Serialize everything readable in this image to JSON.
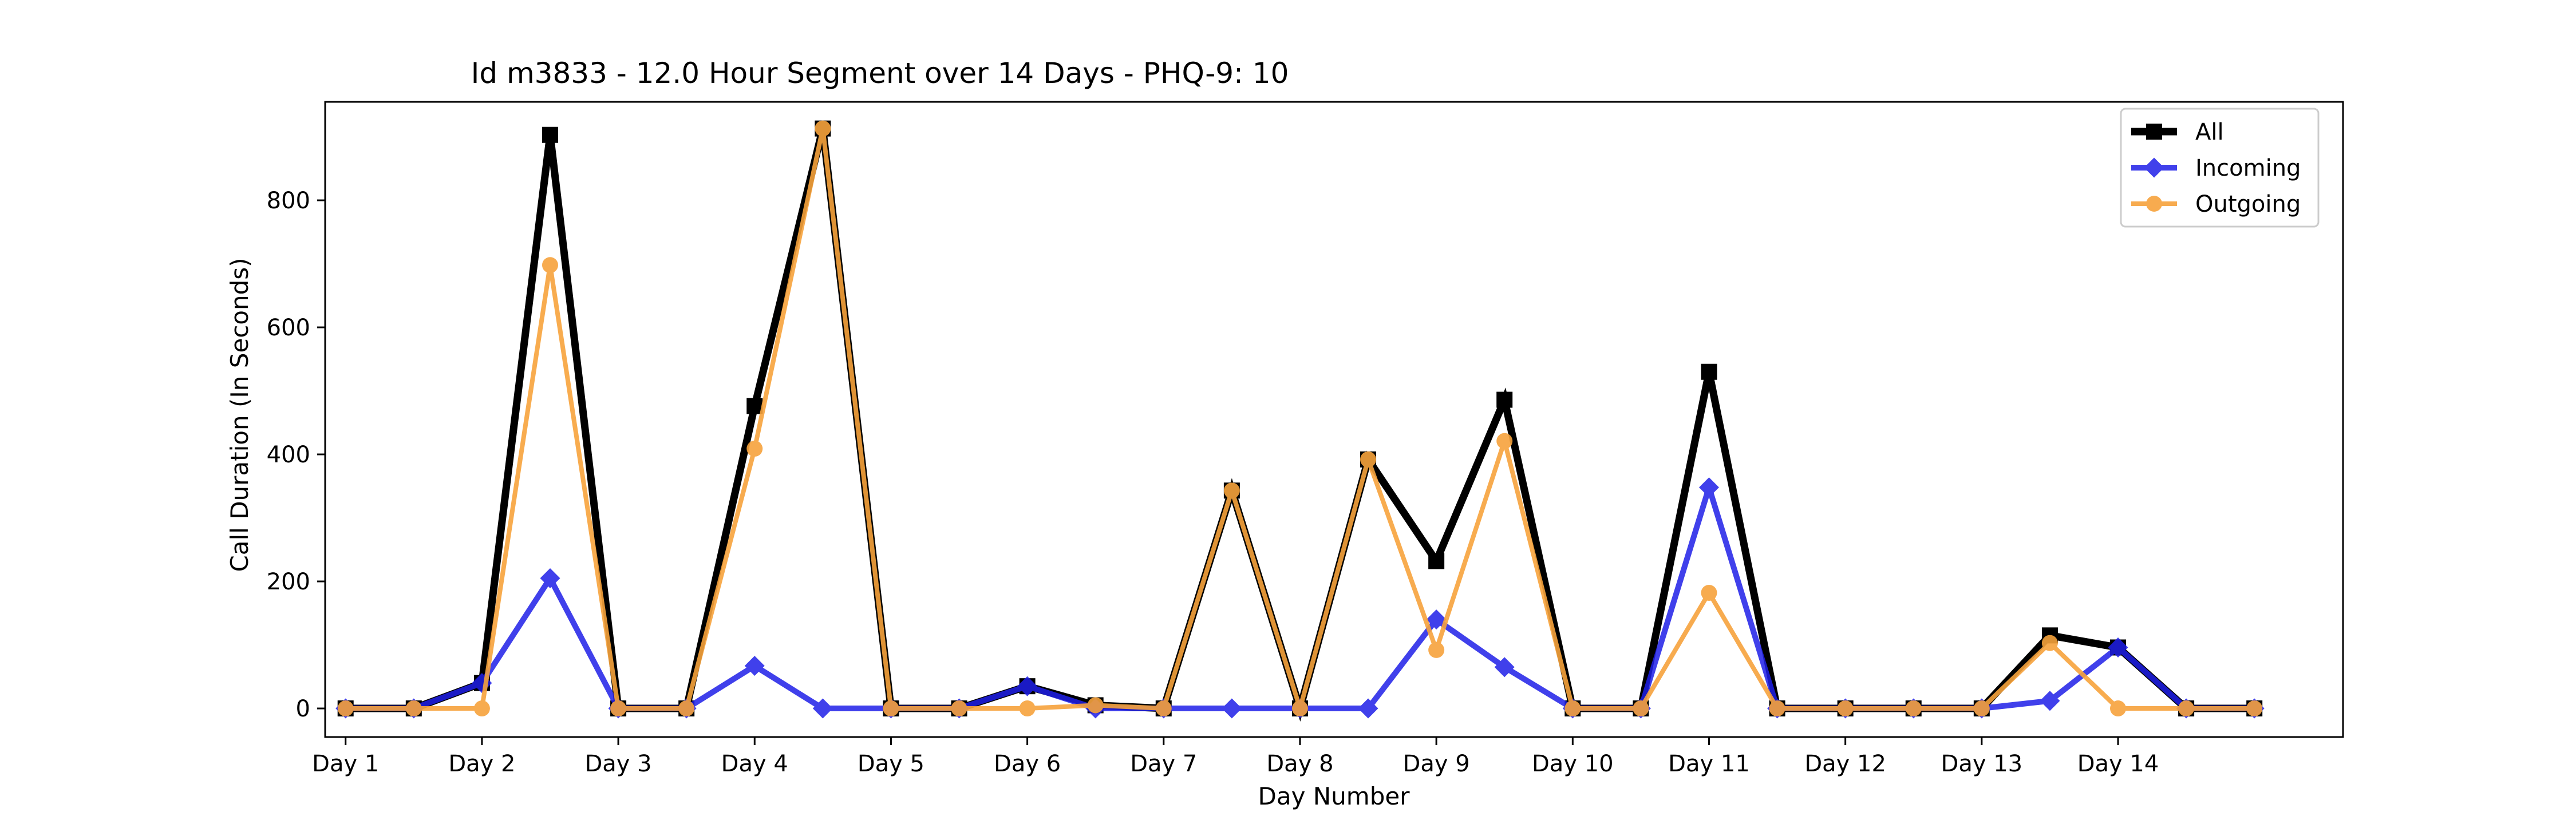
{
  "chart_data": {
    "type": "line",
    "title": "Id m3833 - 12.0 Hour Segment over 14 Days - PHQ-9: 10",
    "xlabel": "Day Number",
    "ylabel": "Call Duration (In Seconds)",
    "x_tick_labels": [
      "Day 1",
      "Day 2",
      "Day 3",
      "Day 4",
      "Day 5",
      "Day 6",
      "Day 7",
      "Day 8",
      "Day 9",
      "Day 10",
      "Day 11",
      "Day 12",
      "Day 13",
      "Day 14"
    ],
    "y_ticks": [
      0,
      200,
      400,
      600,
      800
    ],
    "xlim": [
      -0.15,
      14.65
    ],
    "ylim": [
      -45,
      955
    ],
    "grid": false,
    "legend_position": "top-right",
    "x": [
      0,
      0.5,
      1,
      1.5,
      2,
      2.5,
      3,
      3.5,
      4,
      4.5,
      5,
      5.5,
      6,
      6.5,
      7,
      7.5,
      8,
      8.5,
      9,
      9.5,
      10,
      10.5,
      11,
      11.5,
      12,
      12.5,
      13,
      13.5,
      14
    ],
    "series": [
      {
        "name": "All",
        "color": "#000000",
        "marker": "square",
        "values": [
          0,
          0,
          40,
          903,
          0,
          0,
          476,
          913,
          0,
          0,
          35,
          5,
          0,
          343,
          0,
          392,
          232,
          486,
          0,
          0,
          530,
          0,
          0,
          0,
          0,
          115,
          96,
          0,
          0
        ]
      },
      {
        "name": "Incoming",
        "color": "#1f1fe8",
        "marker": "diamond",
        "values": [
          0,
          0,
          40,
          205,
          0,
          0,
          67,
          0,
          0,
          0,
          35,
          0,
          0,
          0,
          0,
          0,
          140,
          65,
          0,
          0,
          348,
          0,
          0,
          0,
          0,
          12,
          96,
          0,
          0
        ]
      },
      {
        "name": "Outgoing",
        "color": "#f7a33c",
        "marker": "circle",
        "values": [
          0,
          0,
          0,
          698,
          0,
          0,
          409,
          913,
          0,
          0,
          0,
          5,
          0,
          343,
          0,
          392,
          92,
          421,
          0,
          0,
          182,
          0,
          0,
          0,
          0,
          103,
          0,
          0,
          0
        ]
      }
    ]
  }
}
